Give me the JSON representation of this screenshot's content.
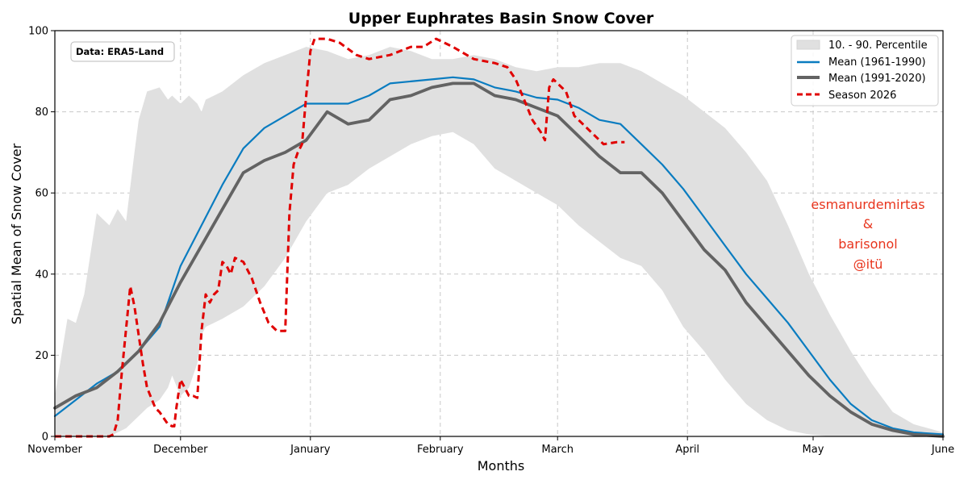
{
  "chart_data": {
    "type": "line",
    "title": "Upper Euphrates Basin Snow Cover",
    "xlabel": "Months",
    "ylabel": "Spatial Mean of Snow Cover",
    "xlim": [
      0,
      212
    ],
    "ylim": [
      0,
      100
    ],
    "x_ticks": [
      {
        "value": 0,
        "label": "November"
      },
      {
        "value": 30,
        "label": "December"
      },
      {
        "value": 61,
        "label": "January"
      },
      {
        "value": 92,
        "label": "February"
      },
      {
        "value": 120,
        "label": "March"
      },
      {
        "value": 151,
        "label": "April"
      },
      {
        "value": 181,
        "label": "May"
      },
      {
        "value": 212,
        "label": "June"
      }
    ],
    "y_ticks": [
      0,
      20,
      40,
      60,
      80,
      100
    ],
    "grid": true,
    "legend_position": "top-right",
    "colors": {
      "band": "#e0e0e0",
      "mean_1961_1990": "#0a7cc0",
      "mean_1991_2020": "#636363",
      "season_2026": "#e00000",
      "credit": "#e8341c"
    },
    "band": {
      "name": "10. - 90. Percentile",
      "x": [
        0,
        3,
        5,
        7,
        10,
        13,
        15,
        17,
        19,
        20,
        22,
        25,
        27,
        28,
        30,
        32,
        34,
        35,
        36,
        38,
        40,
        45,
        50,
        55,
        60,
        65,
        70,
        75,
        80,
        85,
        90,
        95,
        100,
        105,
        110,
        115,
        120,
        125,
        130,
        135,
        140,
        145,
        150,
        155,
        160,
        165,
        170,
        175,
        180,
        185,
        190,
        195,
        200,
        205,
        212
      ],
      "upper": [
        10,
        29,
        28,
        35,
        55,
        52,
        56,
        53,
        70,
        78,
        85,
        86,
        83,
        84,
        82,
        84,
        82,
        80,
        83,
        84,
        85,
        89,
        92,
        94,
        96,
        95,
        93,
        94,
        96,
        95,
        93,
        93,
        94,
        93,
        91,
        90,
        91,
        91,
        92,
        92,
        90,
        87,
        84,
        80,
        76,
        70,
        63,
        52,
        40,
        30,
        21,
        13,
        6,
        3,
        1
      ],
      "lower": [
        0,
        0,
        0,
        0,
        0,
        0,
        1,
        2,
        4,
        5,
        7,
        9,
        12,
        15,
        10,
        12,
        18,
        25,
        27,
        28,
        29,
        32,
        37,
        44,
        53,
        60,
        62,
        66,
        69,
        72,
        74,
        75,
        72,
        66,
        63,
        60,
        57,
        52,
        48,
        44,
        42,
        36,
        27,
        21,
        14,
        8,
        4,
        1.5,
        0.5,
        0,
        0,
        0,
        0,
        0,
        0
      ]
    },
    "series": [
      {
        "name": "Mean (1961-1990)",
        "x": [
          0,
          5,
          10,
          15,
          20,
          25,
          30,
          35,
          40,
          45,
          50,
          55,
          60,
          65,
          70,
          75,
          80,
          85,
          90,
          95,
          100,
          105,
          110,
          115,
          120,
          125,
          130,
          135,
          140,
          145,
          150,
          155,
          160,
          165,
          170,
          175,
          180,
          185,
          190,
          195,
          200,
          205,
          212
        ],
        "values": [
          5,
          9,
          13,
          16,
          21,
          27,
          42,
          52,
          62,
          71,
          76,
          79,
          82,
          82,
          82,
          84,
          87,
          87.5,
          88,
          88.5,
          88,
          86,
          85,
          83.5,
          83,
          81,
          78,
          77,
          72,
          67,
          61,
          54,
          47,
          40,
          34,
          28,
          21,
          14,
          8,
          4,
          2,
          1,
          0.5
        ]
      },
      {
        "name": "Mean (1991-2020)",
        "x": [
          0,
          5,
          10,
          15,
          20,
          25,
          30,
          35,
          40,
          45,
          50,
          55,
          60,
          65,
          70,
          75,
          80,
          85,
          90,
          95,
          100,
          105,
          110,
          115,
          120,
          125,
          130,
          135,
          140,
          145,
          150,
          155,
          160,
          165,
          170,
          175,
          180,
          185,
          190,
          195,
          200,
          205,
          212
        ],
        "values": [
          7,
          10,
          12,
          16,
          21,
          28,
          38,
          47,
          56,
          65,
          68,
          70,
          73,
          80,
          77,
          78,
          83,
          84,
          86,
          87,
          87,
          84,
          83,
          81,
          79,
          74,
          69,
          65,
          65,
          60,
          53,
          46,
          41,
          33,
          27,
          21,
          15,
          10,
          6,
          3,
          1.5,
          0.5,
          0
        ]
      },
      {
        "name": "Season 2026",
        "x": [
          0,
          5,
          8,
          9,
          10,
          11,
          12,
          13,
          14,
          15,
          16,
          18,
          19,
          20,
          21,
          22,
          24,
          25,
          26,
          27,
          28,
          28.5,
          29,
          30,
          31,
          32,
          33,
          34,
          35,
          36,
          37,
          38,
          39,
          40,
          41,
          42,
          43,
          45,
          47,
          49,
          51,
          53,
          55,
          56,
          57,
          58,
          59,
          60,
          61,
          62,
          63,
          65,
          68,
          72,
          75,
          80,
          85,
          88,
          91,
          95,
          100,
          105,
          108,
          110,
          112,
          114,
          116,
          117,
          118,
          119,
          120,
          121,
          122,
          123,
          124,
          125,
          126,
          128,
          131,
          134,
          136
        ],
        "values": [
          0,
          0,
          0,
          0,
          0,
          0,
          0,
          0,
          0.5,
          4,
          16,
          37,
          32,
          25,
          18,
          12,
          7,
          6,
          4.5,
          3,
          2.5,
          2.5,
          7,
          14,
          12,
          10,
          10,
          9.5,
          26,
          35,
          33,
          35,
          36,
          43,
          42,
          40,
          44,
          43,
          39,
          33,
          28,
          26,
          26,
          55,
          67,
          70,
          72,
          84,
          95,
          98,
          98,
          98,
          97,
          94,
          93,
          94,
          96,
          96,
          98,
          96,
          93,
          92,
          91,
          88,
          83,
          78,
          75,
          73,
          86,
          88,
          87,
          86,
          85,
          82,
          79,
          78,
          77,
          75,
          72,
          72.5,
          72.5
        ]
      }
    ],
    "annotations": {
      "source": "Data: ERA5-Land",
      "credit": [
        "esmanurdemirtas",
        "&",
        "barisonol",
        "@itü"
      ]
    }
  }
}
